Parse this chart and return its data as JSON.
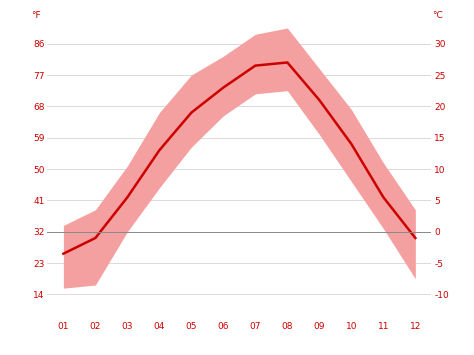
{
  "months": [
    1,
    2,
    3,
    4,
    5,
    6,
    7,
    8,
    9,
    10,
    11,
    12
  ],
  "month_labels": [
    "01",
    "02",
    "03",
    "04",
    "05",
    "06",
    "07",
    "08",
    "09",
    "10",
    "11",
    "12"
  ],
  "avg_temp": [
    -3.5,
    -1.0,
    5.5,
    13.0,
    19.0,
    23.0,
    26.5,
    27.0,
    21.0,
    14.0,
    5.5,
    -1.0
  ],
  "temp_high": [
    1.0,
    3.5,
    10.5,
    19.0,
    25.0,
    28.0,
    31.5,
    32.5,
    26.0,
    19.5,
    11.0,
    3.5
  ],
  "temp_low": [
    -9.0,
    -8.5,
    0.0,
    7.0,
    13.5,
    18.5,
    22.0,
    22.5,
    15.5,
    8.0,
    0.5,
    -7.5
  ],
  "line_color": "#cc0000",
  "fill_color": "#f5a0a0",
  "background_color": "#ffffff",
  "grid_color": "#cccccc",
  "zero_line_color": "#888888",
  "yticks_C": [
    30,
    25,
    20,
    15,
    10,
    5,
    0,
    -5,
    -10
  ],
  "ylabel_F": [
    "86",
    "77",
    "68",
    "59",
    "50",
    "41",
    "32",
    "23",
    "14"
  ],
  "ylabel_C": [
    "30",
    "25",
    "20",
    "15",
    "10",
    "5",
    "0",
    "-5",
    "-10"
  ],
  "ylim": [
    -14,
    33
  ],
  "xlim": [
    0.5,
    12.5
  ],
  "title_F": "°F",
  "title_C": "°C"
}
